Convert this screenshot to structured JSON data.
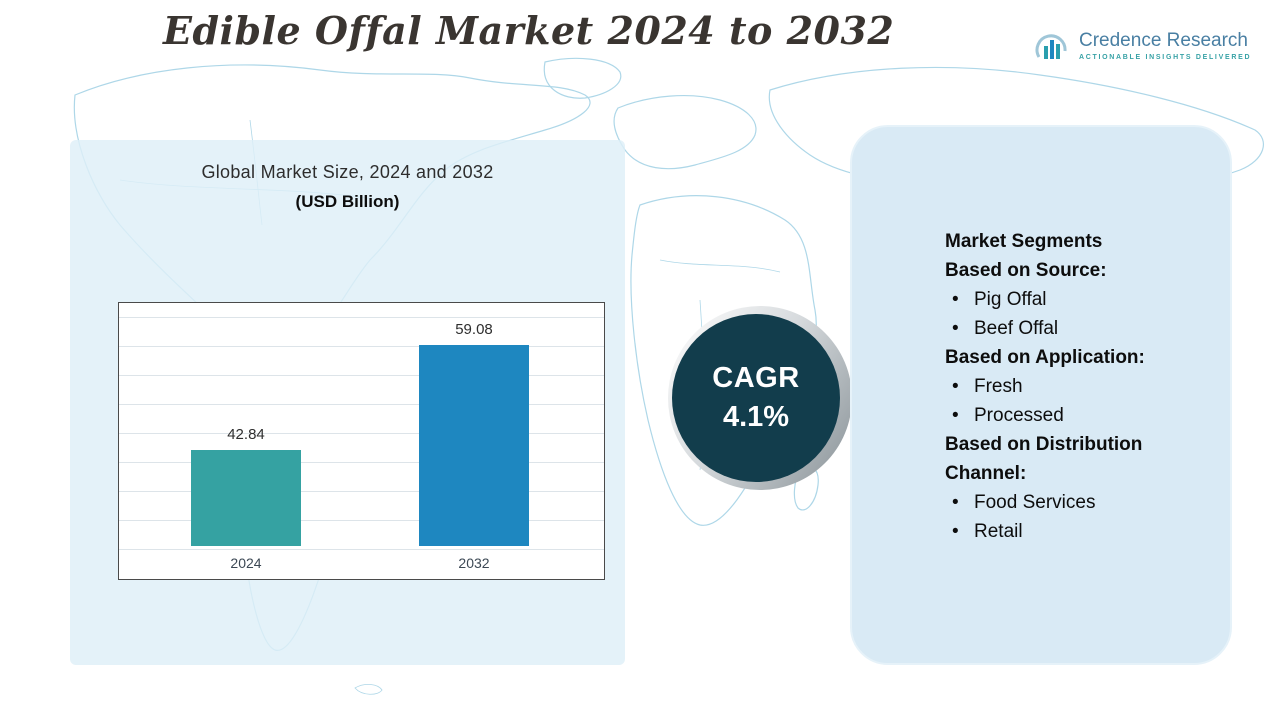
{
  "page": {
    "title": "Edible Offal Market 2024 to 2032"
  },
  "logo": {
    "name": "Credence Research",
    "tagline": "Actionable Insights Delivered"
  },
  "chart_panel": {
    "title_line1": "Global Market Size, 2024 and 2032",
    "title_line2": "(USD Billion)"
  },
  "chart_data": {
    "type": "bar",
    "title": "Global Market Size, 2024 and 2032 (USD Billion)",
    "categories": [
      "2024",
      "2032"
    ],
    "values": [
      42.84,
      59.08
    ],
    "bar_colors": [
      "#35a2a2",
      "#1e87c0"
    ],
    "ylim": [
      28,
      64
    ],
    "grid": true,
    "xlabel": "",
    "ylabel": ""
  },
  "cagr": {
    "label": "CAGR",
    "value": "4.1%"
  },
  "segments": {
    "title": "Market Segments",
    "bullet": "•",
    "groups": [
      {
        "heading": "Based on Source:",
        "items": [
          "Pig Offal",
          "Beef Offal"
        ]
      },
      {
        "heading": "Based on Application:",
        "items": [
          "Fresh",
          "Processed"
        ]
      },
      {
        "heading": "Based on Distribution Channel:",
        "items": [
          "Food Services",
          "Retail"
        ]
      }
    ]
  },
  "colors": {
    "accent_teal": "#35a2a2",
    "accent_blue": "#1e87c0",
    "circle_dark": "#123d4c",
    "panel_light": "#d9eaf5",
    "map_line": "#aed7e8"
  }
}
